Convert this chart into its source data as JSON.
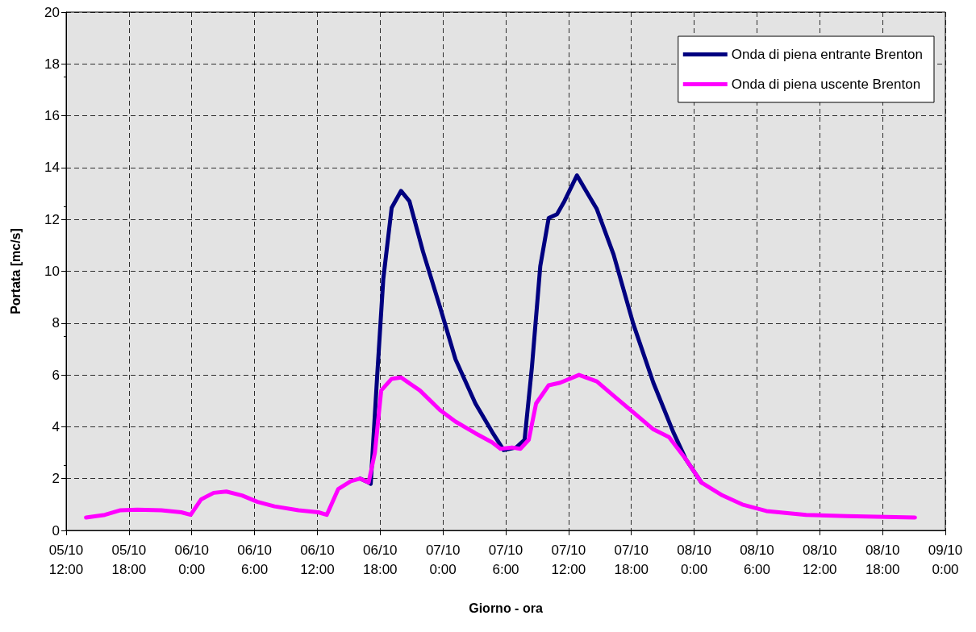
{
  "chart_data": {
    "type": "line",
    "xlabel": "Giorno - ora",
    "ylabel": "Portata [mc/s]",
    "xlim": [
      "--10-05T12:00",
      "--10-09T00:00"
    ],
    "xticks": [
      {
        "value": "--10-05T12:00",
        "label": "05/10\n12:00"
      },
      {
        "value": "--10-05T18:00",
        "label": "05/10\n18:00"
      },
      {
        "value": "--10-06T00:00",
        "label": "06/10\n0:00"
      },
      {
        "value": "--10-06T06:00",
        "label": "06/10\n6:00"
      },
      {
        "value": "--10-06T12:00",
        "label": "06/10\n12:00"
      },
      {
        "value": "--10-06T18:00",
        "label": "06/10\n18:00"
      },
      {
        "value": "--10-07T00:00",
        "label": "07/10\n0:00"
      },
      {
        "value": "--10-07T06:00",
        "label": "07/10\n6:00"
      },
      {
        "value": "--10-07T12:00",
        "label": "07/10\n12:00"
      },
      {
        "value": "--10-07T18:00",
        "label": "07/10\n18:00"
      },
      {
        "value": "--10-08T00:00",
        "label": "08/10\n0:00"
      },
      {
        "value": "--10-08T06:00",
        "label": "08/10\n6:00"
      },
      {
        "value": "--10-08T12:00",
        "label": "08/10\n12:00"
      },
      {
        "value": "--10-08T18:00",
        "label": "08/10\n18:00"
      },
      {
        "value": "--10-09T00:00",
        "label": "09/10\n0:00"
      }
    ],
    "ylim": [
      0,
      20
    ],
    "yticks": [
      0,
      2,
      4,
      6,
      8,
      10,
      12,
      14,
      16,
      18,
      20
    ],
    "grid": true,
    "legend": "top right",
    "marker": "none",
    "line_style": "solid",
    "series": [
      {
        "name": "Onda di piena entrante Brenton",
        "color": "#000080",
        "x": [
          "--10-06T16:06",
          "--10-06T16:54",
          "--10-06T17:06",
          "--10-06T17:42",
          "--10-06T18:18",
          "--10-06T19:06",
          "--10-06T20:00",
          "--10-06T20:48",
          "--10-06T22:06",
          "--10-06T23:42",
          "--10-07T01:12",
          "--10-07T03:06",
          "--10-07T04:42",
          "--10-07T05:48",
          "--10-07T07:00",
          "--10-07T07:48",
          "--10-07T08:30",
          "--10-07T09:18",
          "--10-07T10:06",
          "--10-07T10:54",
          "--10-07T11:36",
          "--10-07T12:48",
          "--10-07T13:36",
          "--10-07T14:42",
          "--10-07T16:18",
          "--10-07T18:12",
          "--10-07T20:06",
          "--10-07T22:00",
          "--10-07T23:12",
          "--10-08T00:42"
        ],
        "values": [
          2,
          1.85,
          1.8,
          5.85,
          9.7,
          12.45,
          13.1,
          12.7,
          10.75,
          8.65,
          6.6,
          4.9,
          3.8,
          3.1,
          3.2,
          3.5,
          6.3,
          10.2,
          12.05,
          12.2,
          12.7,
          13.7,
          13.15,
          12.4,
          10.65,
          7.95,
          5.7,
          3.8,
          2.75,
          1.85
        ]
      },
      {
        "name": "Onda di piena uscente Brenton",
        "color": "#ff00ff",
        "x": [
          "--10-05T13:54",
          "--10-05T15:42",
          "--10-05T17:12",
          "--10-05T18:48",
          "--10-05T21:06",
          "--10-05T23:00",
          "--10-05T23:54",
          "--10-06T00:54",
          "--10-06T02:06",
          "--10-06T03:18",
          "--10-06T04:48",
          "--10-06T06:18",
          "--10-06T07:54",
          "--10-06T10:12",
          "--10-06T12:06",
          "--10-06T12:54",
          "--10-06T14:00",
          "--10-06T15:12",
          "--10-06T16:06",
          "--10-06T16:54",
          "--10-06T17:30",
          "--10-06T18:06",
          "--10-06T19:06",
          "--10-06T20:00",
          "--10-06T21:48",
          "--10-06T23:42",
          "--10-07T01:12",
          "--10-07T03:06",
          "--10-07T04:42",
          "--10-07T05:30",
          "--10-07T06:36",
          "--10-07T07:24",
          "--10-07T08:12",
          "--10-07T08:54",
          "--10-07T10:06",
          "--10-07T11:12",
          "--10-07T13:00",
          "--10-07T14:42",
          "--10-07T16:18",
          "--10-07T18:12",
          "--10-07T20:06",
          "--10-07T21:36",
          "--10-07T23:12",
          "--10-08T00:42",
          "--10-08T02:42",
          "--10-08T04:36",
          "--10-08T06:54",
          "--10-08T10:42",
          "--10-08T14:36",
          "--10-08T21:06"
        ],
        "values": [
          0.5,
          0.6,
          0.78,
          0.8,
          0.78,
          0.7,
          0.6,
          1.2,
          1.45,
          1.5,
          1.35,
          1.1,
          0.93,
          0.78,
          0.7,
          0.6,
          1.6,
          1.9,
          2,
          1.85,
          3,
          5.4,
          5.85,
          5.9,
          5.4,
          4.65,
          4.2,
          3.75,
          3.4,
          3.15,
          3.2,
          3.15,
          3.5,
          4.9,
          5.6,
          5.7,
          6,
          5.75,
          5.2,
          4.55,
          3.9,
          3.6,
          2.75,
          1.85,
          1.35,
          1,
          0.75,
          0.6,
          0.55,
          0.5
        ]
      }
    ]
  }
}
